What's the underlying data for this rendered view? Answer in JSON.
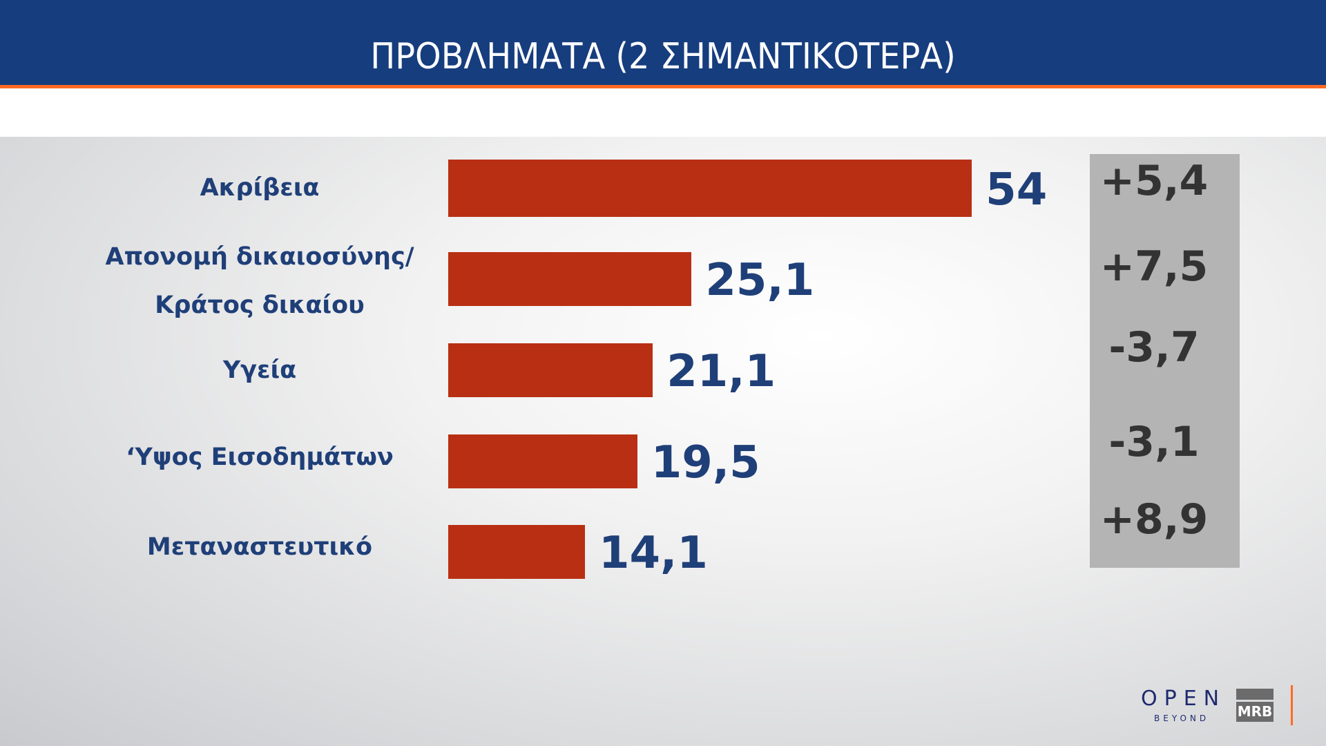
{
  "header": {
    "title": "ΠΡΟΒΛΗΜΑΤΑ (2 ΣΗΜΑΝΤΙΚΟΤΕΡΑ)"
  },
  "colors": {
    "header": "#163d7d",
    "accent": "#ff6a23",
    "bar": "#b92f14",
    "value_text": "#1f3f78",
    "change_box": "#b4b4b4"
  },
  "chart_data": {
    "type": "bar",
    "orientation": "horizontal",
    "categories": [
      "Ακρίβεια",
      "Απονομή δικαιοσύνης/ Κράτος δικαίου",
      "Υγεία",
      "‘Υψος Εισοδημάτων",
      "Μεταναστευτικό"
    ],
    "category_lines": [
      [
        "Ακρίβεια"
      ],
      [
        "Απονομή δικαιοσύνης/",
        "Κράτος δικαίου"
      ],
      [
        "Υγεία"
      ],
      [
        "‘Υψος Εισοδημάτων"
      ],
      [
        "Μεταναστευτικό"
      ]
    ],
    "values": [
      54,
      25.1,
      21.1,
      19.5,
      14.1
    ],
    "value_labels": [
      "54",
      "25,1",
      "21,1",
      "19,5",
      "14,1"
    ],
    "changes": [
      "+5,4",
      "+7,5",
      "-3,7",
      "-3,1",
      "+8,9"
    ],
    "grid": false
  },
  "logos": {
    "open": "OPEN",
    "open_sub": "BEYOND",
    "mrb": "MRB"
  }
}
